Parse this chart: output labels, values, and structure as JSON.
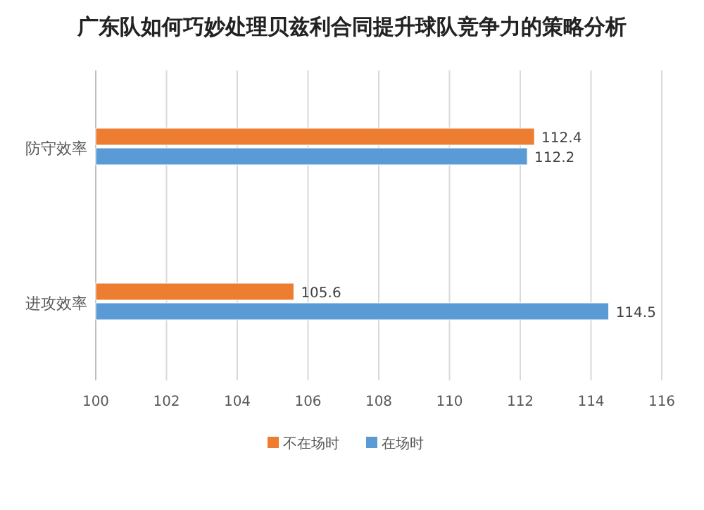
{
  "chart_data": {
    "type": "bar",
    "orientation": "horizontal",
    "title": "广东队如何巧妙处理贝兹利合同提升球队竞争力的策略分析",
    "categories": [
      "防守效率",
      "进攻效率"
    ],
    "series": [
      {
        "name": "不在场时",
        "color": "#ed7d31",
        "values": [
          112.4,
          105.6
        ]
      },
      {
        "name": "在场时",
        "color": "#5b9bd5",
        "values": [
          112.2,
          114.5
        ]
      }
    ],
    "xlim": [
      100,
      116
    ],
    "xticks": [
      100,
      102,
      104,
      106,
      108,
      110,
      112,
      114,
      116
    ],
    "grid": "x",
    "legend": "bottom",
    "data_labels": true
  }
}
